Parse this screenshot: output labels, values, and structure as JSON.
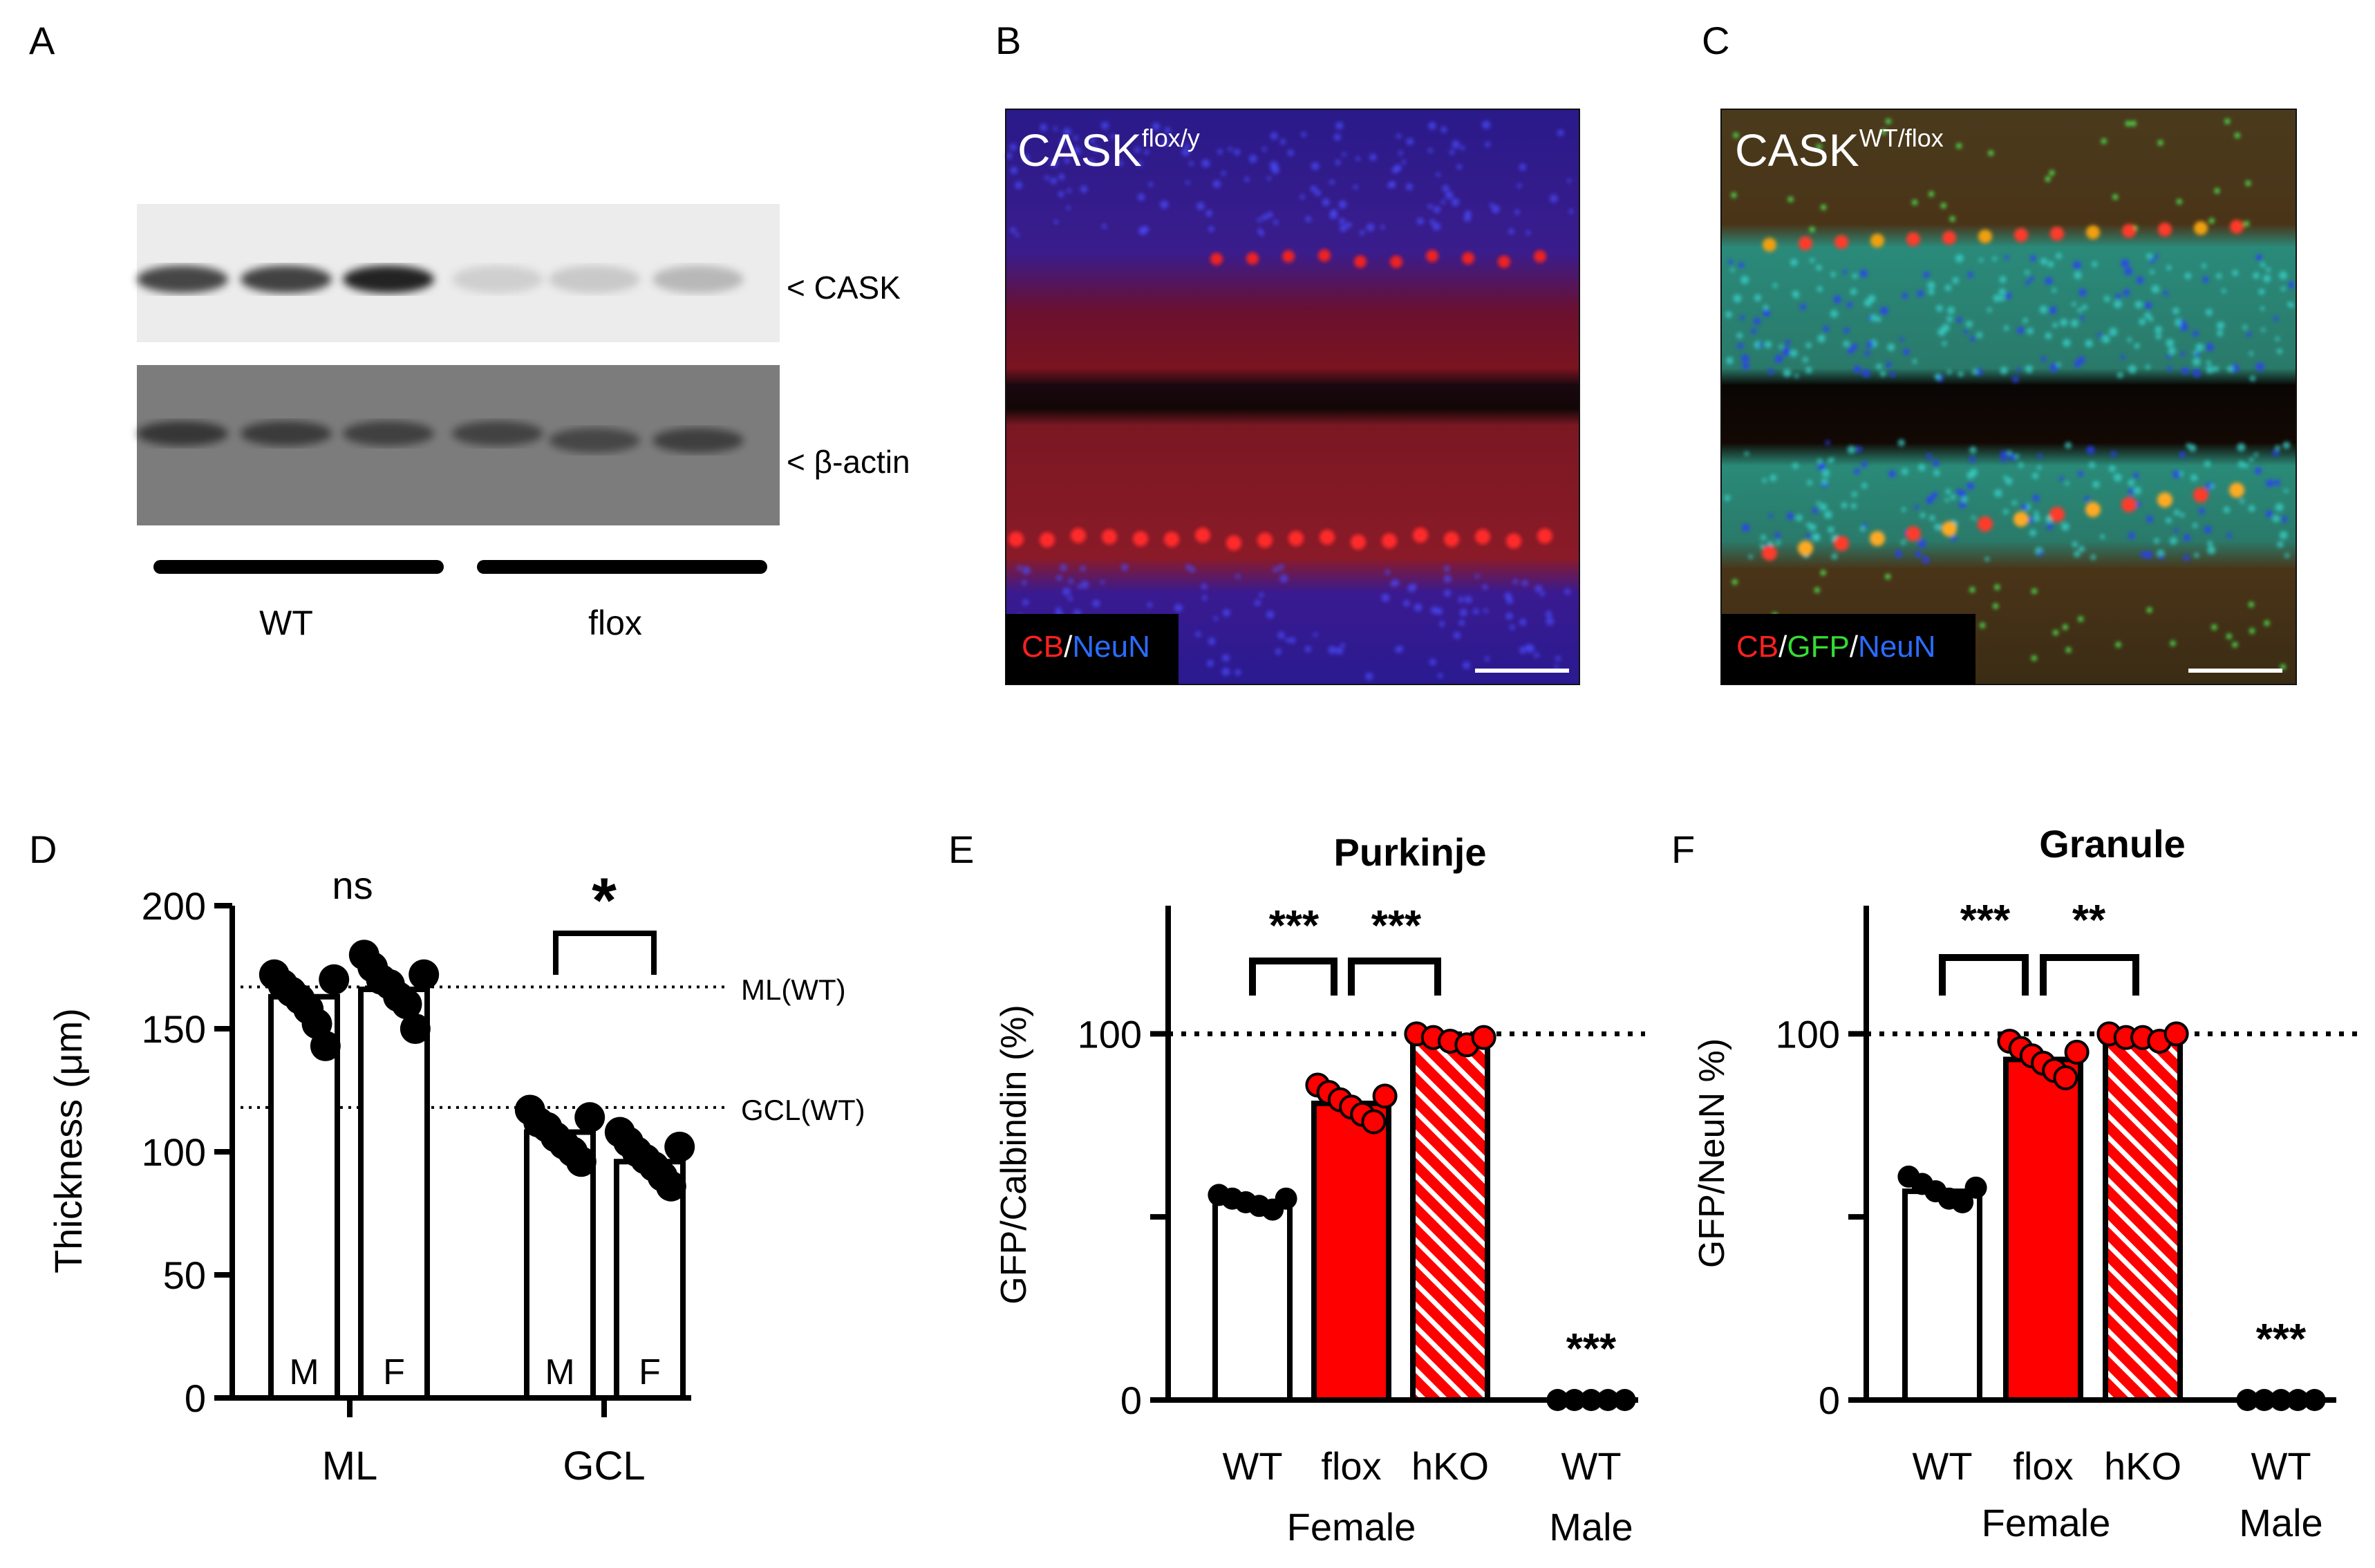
{
  "panel_letters": {
    "a": "A",
    "b": "B",
    "c": "C",
    "d": "D",
    "e": "E",
    "f": "F"
  },
  "blot": {
    "bands": [
      "< CASK",
      "< β-actin"
    ],
    "groups": [
      "WT",
      "flox"
    ],
    "cask_intensity": [
      0.7,
      0.72,
      0.85,
      0.12,
      0.15,
      0.22
    ],
    "actin_intensity": [
      0.75,
      0.7,
      0.65,
      0.62,
      0.58,
      0.66
    ]
  },
  "micrographs": {
    "b": {
      "title_base": "CASK",
      "title_sup": "flox/y",
      "legend": [
        {
          "text": "CB",
          "color": "#ff2020"
        },
        {
          "text": "/",
          "color": "#ffffff"
        },
        {
          "text": "NeuN",
          "color": "#2a6cff"
        }
      ]
    },
    "c": {
      "title_base": "CASK",
      "title_sup": "WT/flox",
      "legend": [
        {
          "text": "CB",
          "color": "#ff2020"
        },
        {
          "text": "/",
          "color": "#ffffff"
        },
        {
          "text": "GFP",
          "color": "#33dd33"
        },
        {
          "text": "/",
          "color": "#ffffff"
        },
        {
          "text": "NeuN",
          "color": "#2a6cff"
        }
      ]
    }
  },
  "chart_data": [
    {
      "id": "D",
      "type": "bar",
      "ylabel": "Thickness (μm)",
      "ylim": [
        0,
        200
      ],
      "yticks": [
        0,
        50,
        100,
        150,
        200
      ],
      "groups": [
        "ML",
        "GCL"
      ],
      "bars": [
        {
          "group": "ML",
          "label": "M",
          "value": 163,
          "points": [
            172,
            168,
            165,
            162,
            158,
            152,
            143,
            170
          ]
        },
        {
          "group": "ML",
          "label": "F",
          "value": 166,
          "points": [
            180,
            175,
            170,
            168,
            163,
            160,
            150,
            172
          ]
        },
        {
          "group": "GCL",
          "label": "M",
          "value": 108,
          "points": [
            117,
            112,
            110,
            106,
            103,
            100,
            96,
            114
          ]
        },
        {
          "group": "GCL",
          "label": "F",
          "value": 96,
          "points": [
            108,
            104,
            100,
            97,
            94,
            90,
            86,
            102
          ]
        }
      ],
      "reference_lines": [
        {
          "label": "ML(WT)",
          "value": 167
        },
        {
          "label": "GCL(WT)",
          "value": 118
        }
      ],
      "annotations": [
        {
          "text": "ns",
          "over": "ML"
        },
        {
          "text": "*",
          "over": "GCL"
        }
      ]
    },
    {
      "id": "E",
      "type": "bar",
      "title": "Purkinje",
      "ylabel": "GFP/Calbindin (%)",
      "ylim": [
        0,
        135
      ],
      "yticks": [
        0,
        100
      ],
      "minor_ticks": [
        50
      ],
      "reference_lines": [
        {
          "value": 100
        }
      ],
      "bars": [
        {
          "label": "WT",
          "value": 54,
          "points": [
            56,
            55,
            54,
            53,
            52,
            55
          ],
          "color": "#ffffff",
          "hatch": false
        },
        {
          "label": "flox",
          "value": 81,
          "points": [
            86,
            84,
            82,
            80,
            78,
            76,
            83
          ],
          "color": "#ff0000",
          "hatch": false
        },
        {
          "label": "hKO",
          "value": 98,
          "points": [
            100,
            99,
            98,
            97,
            99
          ],
          "color": "#ff0000",
          "hatch": true
        },
        {
          "label": "WT",
          "value": 0,
          "points": [
            0,
            0,
            0,
            0,
            0
          ],
          "color": "#ffffff",
          "hatch": false
        }
      ],
      "sex_labels": [
        "Female",
        "Male"
      ],
      "annotations": [
        "***",
        "***",
        "***"
      ]
    },
    {
      "id": "F",
      "type": "bar",
      "title": "Granule",
      "ylabel": "GFP/NeuN %)",
      "ylim": [
        0,
        135
      ],
      "yticks": [
        0,
        100
      ],
      "minor_ticks": [
        50
      ],
      "reference_lines": [
        {
          "value": 100
        }
      ],
      "bars": [
        {
          "label": "WT",
          "value": 57,
          "points": [
            61,
            59,
            57,
            55,
            54,
            58
          ],
          "color": "#ffffff",
          "hatch": false
        },
        {
          "label": "flox",
          "value": 93,
          "points": [
            98,
            96,
            94,
            92,
            90,
            88,
            95
          ],
          "color": "#ff0000",
          "hatch": false
        },
        {
          "label": "hKO",
          "value": 99,
          "points": [
            100,
            99,
            99,
            98,
            100
          ],
          "color": "#ff0000",
          "hatch": true
        },
        {
          "label": "WT",
          "value": 0,
          "points": [
            0,
            0,
            0,
            0,
            0
          ],
          "color": "#ffffff",
          "hatch": false
        }
      ],
      "sex_labels": [
        "Female",
        "Male"
      ],
      "annotations": [
        "***",
        "**",
        "***"
      ]
    }
  ]
}
